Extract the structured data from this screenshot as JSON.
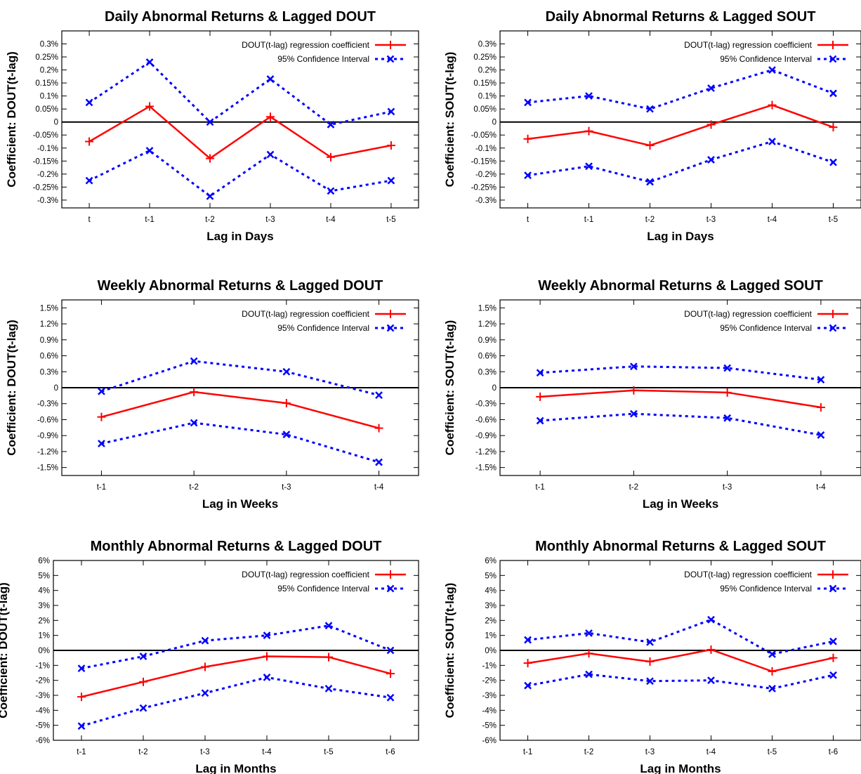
{
  "legend": {
    "coef_label": "DOUT(t-lag) regression coefficient",
    "ci_label": "95% Confidence Interval"
  },
  "colors": {
    "coefficient": "#ff0000",
    "confidence": "#0000ff",
    "zero_line": "#000000"
  },
  "chart_data": [
    {
      "type": "line",
      "title": "Daily Abnormal Returns & Lagged DOUT",
      "xlabel": "Lag in Days",
      "ylabel": "Coefficient:  DOUT(t-lag)",
      "categories": [
        "t",
        "t-1",
        "t-2",
        "t-3",
        "t-4",
        "t-5"
      ],
      "yticks": [
        "0.3%",
        "0.25%",
        "0.2%",
        "0.15%",
        "0.1%",
        "0.05%",
        "0",
        "-0.05%",
        "-0.1%",
        "-0.15%",
        "-0.2%",
        "-0.25%",
        "-0.3%"
      ],
      "ylim": [
        -0.33,
        0.35
      ],
      "legend_position": "top-right",
      "series": [
        {
          "role": "coefficient",
          "values": [
            -0.075,
            0.06,
            -0.14,
            0.02,
            -0.135,
            -0.09
          ]
        },
        {
          "role": "ci_upper",
          "values": [
            0.075,
            0.23,
            0.0,
            0.165,
            -0.01,
            0.04
          ]
        },
        {
          "role": "ci_lower",
          "values": [
            -0.225,
            -0.11,
            -0.285,
            -0.125,
            -0.265,
            -0.225
          ]
        }
      ]
    },
    {
      "type": "line",
      "title": "Daily Abnormal Returns & Lagged SOUT",
      "xlabel": "Lag in Days",
      "ylabel": "Coefficient:  SOUT(t-lag)",
      "categories": [
        "t",
        "t-1",
        "t-2",
        "t-3",
        "t-4",
        "t-5"
      ],
      "yticks": [
        "0.3%",
        "0.25%",
        "0.2%",
        "0.15%",
        "0.1%",
        "0.05%",
        "0",
        "-0.05%",
        "-0.1%",
        "-0.15%",
        "-0.2%",
        "-0.25%",
        "-0.3%"
      ],
      "ylim": [
        -0.33,
        0.35
      ],
      "legend_position": "top-right",
      "series": [
        {
          "role": "coefficient",
          "values": [
            -0.065,
            -0.035,
            -0.09,
            -0.01,
            0.065,
            -0.02
          ]
        },
        {
          "role": "ci_upper",
          "values": [
            0.075,
            0.1,
            0.05,
            0.13,
            0.2,
            0.11
          ]
        },
        {
          "role": "ci_lower",
          "values": [
            -0.205,
            -0.17,
            -0.23,
            -0.145,
            -0.075,
            -0.155
          ]
        }
      ]
    },
    {
      "type": "line",
      "title": "Weekly Abnormal Returns & Lagged DOUT",
      "xlabel": "Lag in Weeks",
      "ylabel": "Coefficient:  DOUT(t-lag)",
      "categories": [
        "t-1",
        "t-2",
        "t-3",
        "t-4"
      ],
      "yticks": [
        "1.5%",
        "1.2%",
        "0.9%",
        "0.6%",
        "0.3%",
        "0",
        "-0.3%",
        "-0.6%",
        "-0.9%",
        "-1.2%",
        "-1.5%"
      ],
      "ylim": [
        -1.65,
        1.65
      ],
      "legend_position": "top-right",
      "series": [
        {
          "role": "coefficient",
          "values": [
            -0.55,
            -0.08,
            -0.29,
            -0.76
          ]
        },
        {
          "role": "ci_upper",
          "values": [
            -0.07,
            0.5,
            0.3,
            -0.14
          ]
        },
        {
          "role": "ci_lower",
          "values": [
            -1.05,
            -0.66,
            -0.88,
            -1.4
          ]
        }
      ]
    },
    {
      "type": "line",
      "title": "Weekly Abnormal Returns & Lagged SOUT",
      "xlabel": "Lag in Weeks",
      "ylabel": "Coefficient:  SOUT(t-lag)",
      "categories": [
        "t-1",
        "t-2",
        "t-3",
        "t-4"
      ],
      "yticks": [
        "1.5%",
        "1.2%",
        "0.9%",
        "0.6%",
        "0.3%",
        "0",
        "-0.3%",
        "-0.6%",
        "-0.9%",
        "-1.2%",
        "-1.5%"
      ],
      "ylim": [
        -1.65,
        1.65
      ],
      "legend_position": "top-right",
      "series": [
        {
          "role": "coefficient",
          "values": [
            -0.17,
            -0.05,
            -0.09,
            -0.37
          ]
        },
        {
          "role": "ci_upper",
          "values": [
            0.28,
            0.4,
            0.37,
            0.15
          ]
        },
        {
          "role": "ci_lower",
          "values": [
            -0.62,
            -0.49,
            -0.57,
            -0.89
          ]
        }
      ]
    },
    {
      "type": "line",
      "title": "Monthly Abnormal Returns & Lagged DOUT",
      "xlabel": "Lag in Months",
      "ylabel": "Coefficient:  DOUT(t-lag)",
      "categories": [
        "t-1",
        "t-2",
        "t-3",
        "t-4",
        "t-5",
        "t-6"
      ],
      "yticks": [
        "6%",
        "5%",
        "4%",
        "3%",
        "2%",
        "1%",
        "0%",
        "-1%",
        "-2%",
        "-3%",
        "-4%",
        "-5%",
        "-6%"
      ],
      "ylim": [
        -6,
        6
      ],
      "legend_position": "top-right",
      "series": [
        {
          "role": "coefficient",
          "values": [
            -3.1,
            -2.1,
            -1.1,
            -0.4,
            -0.45,
            -1.55
          ]
        },
        {
          "role": "ci_upper",
          "values": [
            -1.2,
            -0.4,
            0.65,
            1.0,
            1.65,
            0.0
          ]
        },
        {
          "role": "ci_lower",
          "values": [
            -5.05,
            -3.85,
            -2.85,
            -1.8,
            -2.55,
            -3.15
          ]
        }
      ]
    },
    {
      "type": "line",
      "title": "Monthly Abnormal Returns & Lagged SOUT",
      "xlabel": "Lag in Months",
      "ylabel": "Coefficient:  SOUT(t-lag)",
      "categories": [
        "t-1",
        "t-2",
        "t-3",
        "t-4",
        "t-5",
        "t-6"
      ],
      "yticks": [
        "6%",
        "5%",
        "4%",
        "3%",
        "2%",
        "1%",
        "0%",
        "-1%",
        "-2%",
        "-3%",
        "-4%",
        "-5%",
        "-6%"
      ],
      "ylim": [
        -6,
        6
      ],
      "legend_position": "top-right",
      "series": [
        {
          "role": "coefficient",
          "values": [
            -0.85,
            -0.2,
            -0.75,
            0.05,
            -1.4,
            -0.5
          ]
        },
        {
          "role": "ci_upper",
          "values": [
            0.7,
            1.15,
            0.55,
            2.05,
            -0.25,
            0.6
          ]
        },
        {
          "role": "ci_lower",
          "values": [
            -2.35,
            -1.6,
            -2.05,
            -2.0,
            -2.55,
            -1.65
          ]
        }
      ]
    }
  ]
}
